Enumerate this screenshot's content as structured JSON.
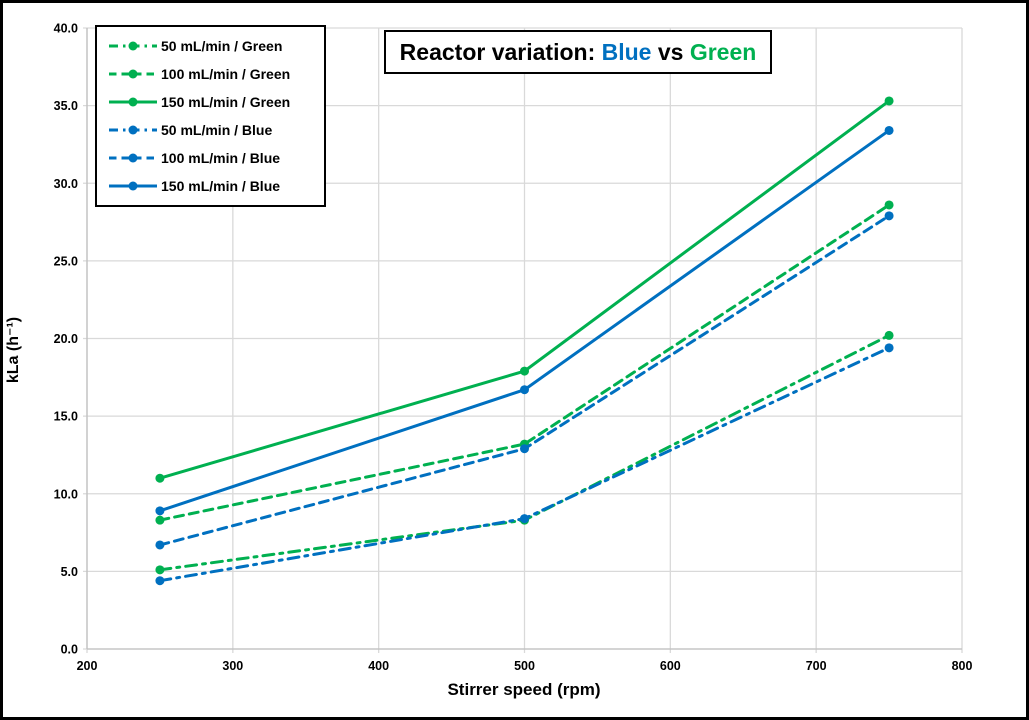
{
  "figure": {
    "title": {
      "prefix": "Reactor variation: ",
      "blue_word": "Blue",
      "middle": " vs ",
      "green_word": "Green"
    },
    "colors": {
      "blue": "#0070C0",
      "green": "#00B050",
      "gridline": "#D9D9D9",
      "axis_line": "#C0C0C0",
      "text": "#000000",
      "background": "#FFFFFF",
      "border": "#000000"
    }
  },
  "chart_data": {
    "type": "line",
    "title": "Reactor variation: Blue vs Green",
    "xlabel": "Stirrer speed (rpm)",
    "ylabel": "kLa (h⁻¹)",
    "xlim": [
      200,
      800
    ],
    "ylim": [
      0,
      40
    ],
    "x_ticks": [
      "200",
      "300",
      "400",
      "500",
      "600",
      "700",
      "800"
    ],
    "y_ticks": [
      "0.0",
      "5.0",
      "10.0",
      "15.0",
      "20.0",
      "25.0",
      "30.0",
      "35.0",
      "40.0"
    ],
    "grid": true,
    "legend_position": "top-left",
    "x": [
      250,
      500,
      750
    ],
    "series": [
      {
        "name": "50 mL/min / Green",
        "color": "#00B050",
        "style": "dashdot",
        "values": [
          5.1,
          8.3,
          20.2
        ]
      },
      {
        "name": "100 mL/min / Green",
        "color": "#00B050",
        "style": "dashed",
        "values": [
          8.3,
          13.2,
          28.6
        ]
      },
      {
        "name": "150 mL/min / Green",
        "color": "#00B050",
        "style": "solid",
        "values": [
          11.0,
          17.9,
          35.3
        ]
      },
      {
        "name": "50 mL/min / Blue",
        "color": "#0070C0",
        "style": "dashdot",
        "values": [
          4.4,
          8.4,
          19.4
        ]
      },
      {
        "name": "100 mL/min / Blue",
        "color": "#0070C0",
        "style": "dashed",
        "values": [
          6.7,
          12.9,
          27.9
        ]
      },
      {
        "name": "150 mL/min / Blue",
        "color": "#0070C0",
        "style": "solid",
        "values": [
          8.9,
          16.7,
          33.4
        ]
      }
    ]
  }
}
